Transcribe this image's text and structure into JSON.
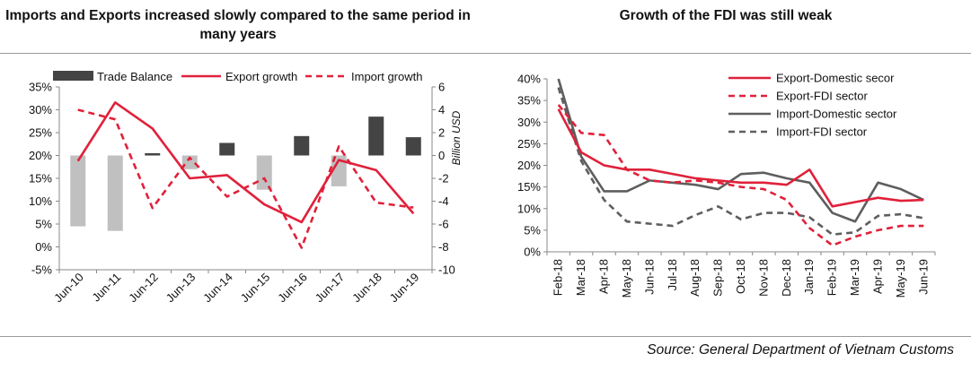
{
  "titles": {
    "left": "Imports and Exports increased slowly compared to the same period in many years",
    "right": "Growth of the FDI was still weak"
  },
  "source": "Source: General Department of Vietnam Customs",
  "colors": {
    "trade_balance": "#444444",
    "trade_balance_negative": "#c0c0c0",
    "red": "#e0213a",
    "dark_gray": "#5e5e5e"
  },
  "chart_data": [
    {
      "type": "bar+line",
      "title": "Imports and Exports increased slowly compared to the same period in many years",
      "categories": [
        "Jun-10",
        "Jun-11",
        "Jun-12",
        "Jun-13",
        "Jun-14",
        "Jun-15",
        "Jun-16",
        "Jun-17",
        "Jun-18",
        "Jun-19"
      ],
      "ylim_left": [
        -5,
        35
      ],
      "yticks_left": [
        "35%",
        "30%",
        "25%",
        "20%",
        "15%",
        "10%",
        "5%",
        "0%",
        "-5%"
      ],
      "ylim_right": [
        -10,
        6
      ],
      "yticks_right": [
        "6",
        "4",
        "2",
        "0",
        "-2",
        "-4",
        "-6",
        "-8",
        "-10"
      ],
      "ylabel_right": "Billion USD",
      "legend": [
        "Trade Balance",
        "Export growth",
        "Import growth"
      ],
      "legend_position": "top",
      "series": [
        {
          "name": "Trade Balance",
          "axis": "right",
          "style": "bar",
          "values": [
            -6.2,
            -6.6,
            0.2,
            -1.2,
            1.1,
            -3.0,
            1.7,
            -2.7,
            3.4,
            1.6
          ]
        },
        {
          "name": "Export growth",
          "axis": "left",
          "style": "solid",
          "values": [
            18.8,
            31.6,
            25.9,
            15.0,
            15.7,
            9.3,
            5.4,
            19.0,
            16.8,
            7.3
          ]
        },
        {
          "name": "Import growth",
          "axis": "left",
          "style": "dashed",
          "values": [
            30.0,
            27.9,
            8.5,
            19.5,
            11.0,
            15.0,
            -0.2,
            22.0,
            9.7,
            8.6
          ]
        }
      ]
    },
    {
      "type": "line",
      "title": "Growth of the FDI was still weak",
      "categories": [
        "Feb-18",
        "Mar-18",
        "Apr-18",
        "May-18",
        "Jun-18",
        "Jul-18",
        "Aug-18",
        "Sep-18",
        "Oct-18",
        "Nov-18",
        "Dec-18",
        "Jan-19",
        "Feb-19",
        "Mar-19",
        "Apr-19",
        "May-19",
        "Jun-19"
      ],
      "ylim": [
        0,
        40
      ],
      "yticks": [
        "40%",
        "35%",
        "30%",
        "25%",
        "20%",
        "15%",
        "10%",
        "5%",
        "0%"
      ],
      "legend_position": "top-right",
      "series": [
        {
          "name": "Export-Domestic secor",
          "style": "solid",
          "color": "red",
          "values": [
            33,
            23,
            20,
            19,
            19,
            18,
            17,
            16.5,
            16,
            16,
            15.5,
            19,
            10.5,
            11.5,
            12.5,
            11.8,
            12
          ]
        },
        {
          "name": "Export-FDI sector",
          "style": "dashed",
          "color": "red",
          "values": [
            34,
            27.5,
            27,
            19,
            16.5,
            16,
            16.5,
            16,
            15,
            14.5,
            12,
            5.5,
            1.5,
            3.5,
            5,
            6,
            6
          ]
        },
        {
          "name": "Import-Domestic sector",
          "style": "solid",
          "color": "gray",
          "values": [
            40,
            22,
            14,
            14,
            16.5,
            16,
            15.5,
            14.5,
            18,
            18.3,
            17,
            16,
            9,
            7,
            16,
            14.5,
            12
          ]
        },
        {
          "name": "Import-FDI sector",
          "style": "dashed",
          "color": "gray",
          "values": [
            38,
            21,
            12,
            7,
            6.5,
            6,
            8.5,
            10.5,
            7.5,
            9,
            9,
            8,
            4,
            4.5,
            8.3,
            8.7,
            7.8
          ]
        }
      ]
    }
  ]
}
